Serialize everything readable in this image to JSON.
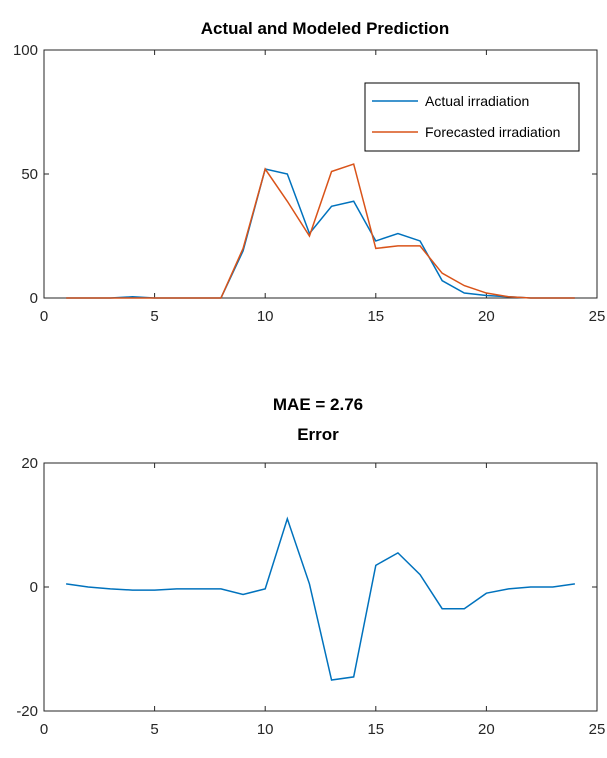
{
  "chart_data": [
    {
      "type": "line",
      "title": "Actual and Modeled Prediction",
      "xlabel": "",
      "ylabel": "",
      "xlim": [
        0,
        25
      ],
      "ylim": [
        0,
        100
      ],
      "xticks": [
        0,
        5,
        10,
        15,
        20,
        25
      ],
      "yticks": [
        0,
        50,
        100
      ],
      "grid": false,
      "legend_position": "top-right",
      "x": [
        1,
        2,
        3,
        4,
        5,
        6,
        7,
        8,
        9,
        10,
        11,
        12,
        13,
        14,
        15,
        16,
        17,
        18,
        19,
        20,
        21,
        22,
        23,
        24
      ],
      "series": [
        {
          "name": "Actual irradiation",
          "color": "#0072BD",
          "values": [
            0,
            0,
            0,
            0.5,
            0,
            0,
            0,
            0,
            19,
            52,
            50,
            26,
            37,
            39,
            23,
            26,
            23,
            7,
            2,
            1,
            0.5,
            0,
            0,
            0
          ]
        },
        {
          "name": "Forecasted irradiation",
          "color": "#D95319",
          "values": [
            0,
            0,
            0,
            0,
            0,
            0,
            0,
            0,
            20,
            52,
            39,
            25,
            51,
            54,
            20,
            21,
            21,
            10,
            5,
            2,
            0.5,
            0,
            0,
            0
          ]
        }
      ]
    },
    {
      "type": "line",
      "title": "MAE = 2.76",
      "subtitle": "Error",
      "xlabel": "",
      "ylabel": "",
      "xlim": [
        0,
        25
      ],
      "ylim": [
        -20,
        20
      ],
      "xticks": [
        0,
        5,
        10,
        15,
        20,
        25
      ],
      "yticks": [
        -20,
        0,
        20
      ],
      "grid": false,
      "x": [
        1,
        2,
        3,
        4,
        5,
        6,
        7,
        8,
        9,
        10,
        11,
        12,
        13,
        14,
        15,
        16,
        17,
        18,
        19,
        20,
        21,
        22,
        23,
        24
      ],
      "series": [
        {
          "color": "#0072BD",
          "values": [
            0.5,
            0,
            -0.3,
            -0.5,
            -0.5,
            -0.3,
            -0.3,
            -0.3,
            -1.2,
            -0.3,
            11,
            0.5,
            -15,
            -14.5,
            3.5,
            5.5,
            2,
            -3.5,
            -3.5,
            -1,
            -0.3,
            0,
            0,
            0.5
          ]
        }
      ]
    }
  ]
}
